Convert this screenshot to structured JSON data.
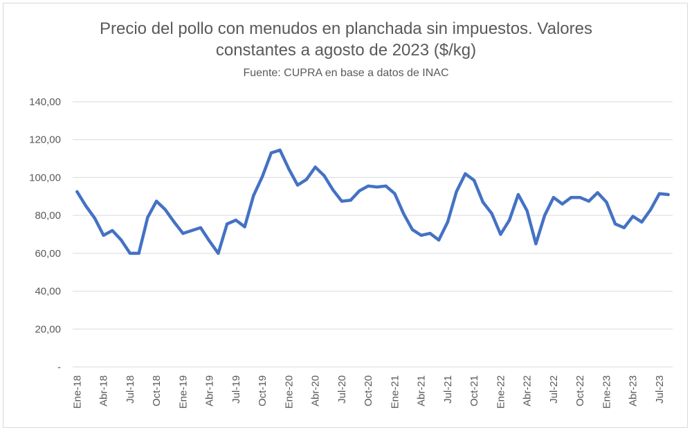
{
  "chart_data": {
    "type": "line",
    "title_line1": "Precio del pollo con menudos en planchada sin impuestos. Valores",
    "title_line2": "constantes a agosto de 2023 ($/kg)",
    "subtitle": "Fuente: CUPRA en base a datos de INAC",
    "line_color": "#4472C4",
    "grid": true,
    "ylim": [
      0,
      140
    ],
    "y_ticks": [
      {
        "value": 0,
        "label": "-"
      },
      {
        "value": 20,
        "label": "20,00"
      },
      {
        "value": 40,
        "label": "40,00"
      },
      {
        "value": 60,
        "label": "60,00"
      },
      {
        "value": 80,
        "label": "80,00"
      },
      {
        "value": 100,
        "label": "100,00"
      },
      {
        "value": 120,
        "label": "120,00"
      },
      {
        "value": 140,
        "label": "140,00"
      }
    ],
    "x_labels": [
      {
        "index": 0,
        "label": "Ene-18"
      },
      {
        "index": 3,
        "label": "Abr-18"
      },
      {
        "index": 6,
        "label": "Jul-18"
      },
      {
        "index": 9,
        "label": "Oct-18"
      },
      {
        "index": 12,
        "label": "Ene-19"
      },
      {
        "index": 15,
        "label": "Abr-19"
      },
      {
        "index": 18,
        "label": "Jul-19"
      },
      {
        "index": 21,
        "label": "Oct-19"
      },
      {
        "index": 24,
        "label": "Ene-20"
      },
      {
        "index": 27,
        "label": "Abr-20"
      },
      {
        "index": 30,
        "label": "Jul-20"
      },
      {
        "index": 33,
        "label": "Oct-20"
      },
      {
        "index": 36,
        "label": "Ene-21"
      },
      {
        "index": 39,
        "label": "Abr-21"
      },
      {
        "index": 42,
        "label": "Jul-21"
      },
      {
        "index": 45,
        "label": "Oct-21"
      },
      {
        "index": 48,
        "label": "Ene-22"
      },
      {
        "index": 51,
        "label": "Abr-22"
      },
      {
        "index": 54,
        "label": "Jul-22"
      },
      {
        "index": 57,
        "label": "Oct-22"
      },
      {
        "index": 60,
        "label": "Ene-23"
      },
      {
        "index": 63,
        "label": "Abr-23"
      },
      {
        "index": 66,
        "label": "Jul-23"
      }
    ],
    "values": [
      92.5,
      85,
      78.5,
      69.5,
      72,
      67,
      60,
      60,
      79,
      87.5,
      83,
      76.5,
      70.5,
      72,
      73.5,
      66.5,
      60,
      75.5,
      77.5,
      74,
      90.5,
      100.5,
      113,
      114.5,
      104.5,
      96,
      99,
      105.5,
      101,
      93.5,
      87.5,
      88,
      93,
      95.5,
      95,
      95.5,
      91.5,
      81,
      72.5,
      69.5,
      70.5,
      67,
      76.5,
      92.5,
      102,
      98.5,
      87,
      81,
      70,
      77.5,
      91,
      82.5,
      65,
      80,
      89.5,
      86,
      89.5,
      89.5,
      87.5,
      92,
      87,
      75.5,
      73.5,
      79.5,
      76.5,
      83,
      91.5,
      91
    ]
  }
}
